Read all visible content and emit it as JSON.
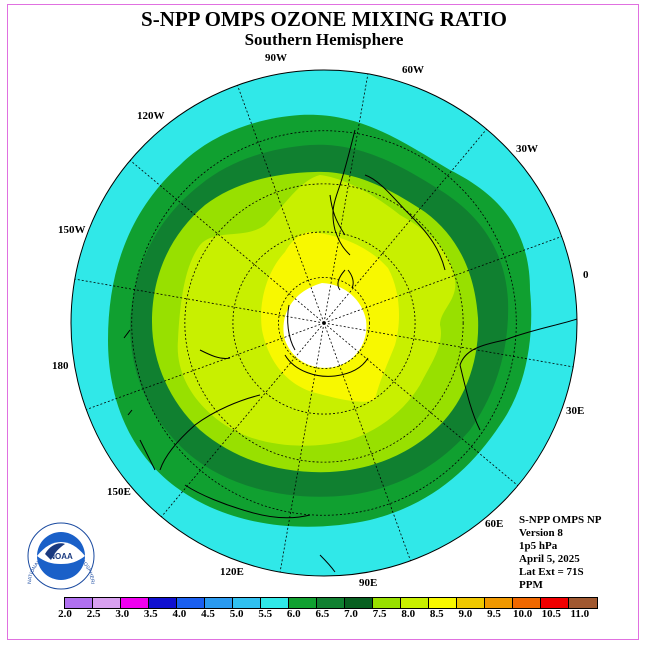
{
  "title": "S-NPP OMPS OZONE MIXING RATIO",
  "subtitle": "Southern Hemisphere",
  "lon_labels": {
    "w90": "90W",
    "w60": "60W",
    "w30": "30W",
    "w120": "120W",
    "w150": "150W",
    "e0": "0",
    "d180": "180",
    "e30": "30E",
    "e60": "60E",
    "e90": "90E",
    "e120": "120E",
    "e150": "150E"
  },
  "info": {
    "line1": "S-NPP OMPS NP",
    "line2": "Version 8",
    "line3": "1p5 hPa",
    "line4": "April 5, 2025",
    "line5": "Lat Ext = 71S",
    "line6": "PPM"
  },
  "logo": {
    "text": "NOAA",
    "ring_text": "NATIONAL OCEANIC AND ATMOSPHERIC ADMINISTRATION · U.S. DEPARTMENT OF COMMERCE"
  },
  "colorbar": {
    "labels": [
      "2.0",
      "2.5",
      "3.0",
      "3.5",
      "4.0",
      "4.5",
      "5.0",
      "5.5",
      "6.0",
      "6.5",
      "7.0",
      "7.5",
      "8.0",
      "8.5",
      "9.0",
      "9.5",
      "10.0",
      "10.5",
      "11.0"
    ],
    "colors": [
      "#b070f0",
      "#d8a0f0",
      "#f000f0",
      "#1010d0",
      "#1a5ff0",
      "#2a9af0",
      "#30c0f0",
      "#30e8e8",
      "#10a030",
      "#108030",
      "#086020",
      "#98e000",
      "#c8f000",
      "#f8f800",
      "#f0c800",
      "#f09800",
      "#f06800",
      "#f00000",
      "#a05830"
    ]
  },
  "map_colors": {
    "c55_60": "#30e8e8",
    "c60_65": "#10a030",
    "c65_70": "#108030",
    "c70_75": "#98e000",
    "c75_80": "#c8f000",
    "c80_85": "#f8f800",
    "nodata": "#ffffff"
  }
}
